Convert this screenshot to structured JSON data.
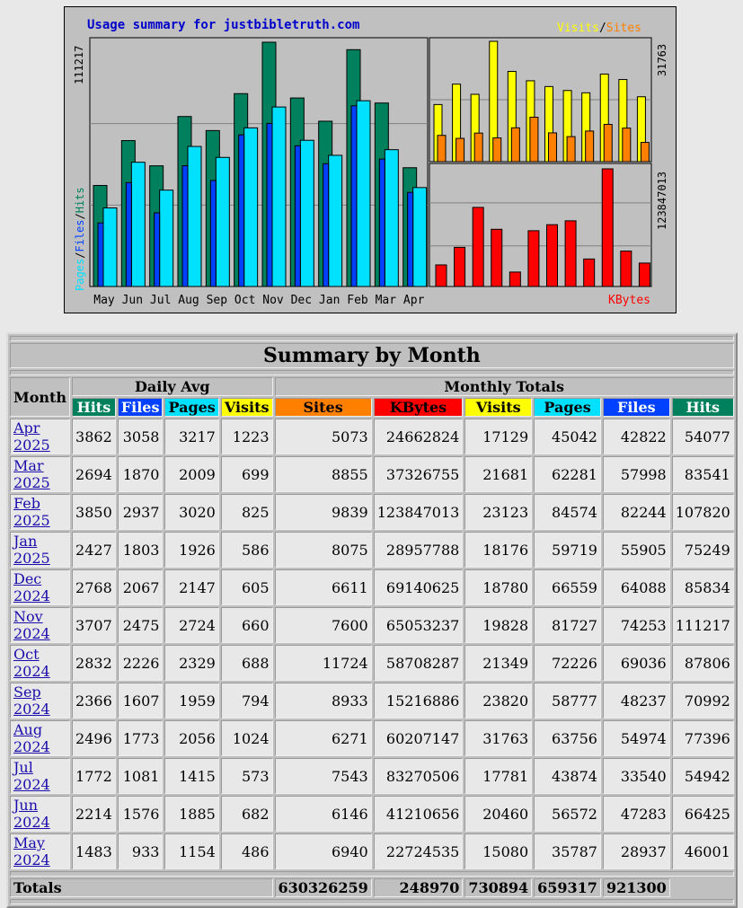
{
  "chart_data": {
    "type": "bar",
    "title": "Usage summary for justbibletruth.com",
    "months": [
      "May",
      "Jun",
      "Jul",
      "Aug",
      "Sep",
      "Oct",
      "Nov",
      "Dec",
      "Jan",
      "Feb",
      "Mar",
      "Apr"
    ],
    "left_axis_max": "111217",
    "visits_axis_max": "31763",
    "kbytes_axis_max": "123847013",
    "left_legend": [
      "Pages",
      "Files",
      "Hits"
    ],
    "top_legend": [
      "Visits",
      "Sites"
    ],
    "bottom_legend": "KBytes",
    "series": [
      {
        "name": "Hits",
        "values": [
          46001,
          66425,
          54942,
          77396,
          70992,
          87806,
          111217,
          85834,
          75249,
          107820,
          83541,
          54077
        ]
      },
      {
        "name": "Files",
        "values": [
          28937,
          47283,
          33540,
          54974,
          48237,
          69036,
          74253,
          64088,
          55905,
          82244,
          57998,
          42822
        ]
      },
      {
        "name": "Pages",
        "values": [
          35787,
          56572,
          43874,
          63756,
          58777,
          72226,
          81727,
          66559,
          59719,
          84574,
          62281,
          45042
        ]
      },
      {
        "name": "Visits",
        "values": [
          15080,
          20460,
          17781,
          31763,
          23820,
          21349,
          19828,
          18780,
          18176,
          23123,
          21681,
          17129
        ]
      },
      {
        "name": "Sites",
        "values": [
          6940,
          6146,
          7543,
          6271,
          8933,
          11724,
          7600,
          6611,
          8075,
          9839,
          8855,
          5073
        ]
      },
      {
        "name": "KBytes",
        "values": [
          22724535,
          41210656,
          83270506,
          60207147,
          15216886,
          58708287,
          65053237,
          69140625,
          28957788,
          123847013,
          37326755,
          24662824
        ]
      }
    ],
    "colors": {
      "hits": "#00805c",
      "files": "#0040ff",
      "pages": "#00e0ff",
      "visits": "#ffff00",
      "sites": "#ff8000",
      "kbytes": "#ff0000",
      "title": "#0000cc"
    }
  },
  "table": {
    "title": "Summary by Month",
    "month_header": "Month",
    "daily_avg_header": "Daily Avg",
    "monthly_totals_header": "Monthly Totals",
    "daily_cols": [
      "Hits",
      "Files",
      "Pages",
      "Visits"
    ],
    "monthly_cols": [
      "Sites",
      "KBytes",
      "Visits",
      "Pages",
      "Files",
      "Hits"
    ],
    "rows": [
      {
        "month": "Apr 2025",
        "d": [
          "3862",
          "3058",
          "3217",
          "1223"
        ],
        "m": [
          "5073",
          "24662824",
          "17129",
          "45042",
          "42822",
          "54077"
        ]
      },
      {
        "month": "Mar 2025",
        "d": [
          "2694",
          "1870",
          "2009",
          "699"
        ],
        "m": [
          "8855",
          "37326755",
          "21681",
          "62281",
          "57998",
          "83541"
        ]
      },
      {
        "month": "Feb 2025",
        "d": [
          "3850",
          "2937",
          "3020",
          "825"
        ],
        "m": [
          "9839",
          "123847013",
          "23123",
          "84574",
          "82244",
          "107820"
        ]
      },
      {
        "month": "Jan 2025",
        "d": [
          "2427",
          "1803",
          "1926",
          "586"
        ],
        "m": [
          "8075",
          "28957788",
          "18176",
          "59719",
          "55905",
          "75249"
        ]
      },
      {
        "month": "Dec 2024",
        "d": [
          "2768",
          "2067",
          "2147",
          "605"
        ],
        "m": [
          "6611",
          "69140625",
          "18780",
          "66559",
          "64088",
          "85834"
        ]
      },
      {
        "month": "Nov 2024",
        "d": [
          "3707",
          "2475",
          "2724",
          "660"
        ],
        "m": [
          "7600",
          "65053237",
          "19828",
          "81727",
          "74253",
          "111217"
        ]
      },
      {
        "month": "Oct 2024",
        "d": [
          "2832",
          "2226",
          "2329",
          "688"
        ],
        "m": [
          "11724",
          "58708287",
          "21349",
          "72226",
          "69036",
          "87806"
        ]
      },
      {
        "month": "Sep 2024",
        "d": [
          "2366",
          "1607",
          "1959",
          "794"
        ],
        "m": [
          "8933",
          "15216886",
          "23820",
          "58777",
          "48237",
          "70992"
        ]
      },
      {
        "month": "Aug 2024",
        "d": [
          "2496",
          "1773",
          "2056",
          "1024"
        ],
        "m": [
          "6271",
          "60207147",
          "31763",
          "63756",
          "54974",
          "77396"
        ]
      },
      {
        "month": "Jul 2024",
        "d": [
          "1772",
          "1081",
          "1415",
          "573"
        ],
        "m": [
          "7543",
          "83270506",
          "17781",
          "43874",
          "33540",
          "54942"
        ]
      },
      {
        "month": "Jun 2024",
        "d": [
          "2214",
          "1576",
          "1885",
          "682"
        ],
        "m": [
          "6146",
          "41210656",
          "20460",
          "56572",
          "47283",
          "66425"
        ]
      },
      {
        "month": "May 2024",
        "d": [
          "1483",
          "933",
          "1154",
          "486"
        ],
        "m": [
          "6940",
          "22724535",
          "15080",
          "35787",
          "28937",
          "46001"
        ]
      }
    ],
    "totals_label": "Totals",
    "totals": [
      "630326259",
      "248970",
      "730894",
      "659317",
      "921300"
    ]
  }
}
